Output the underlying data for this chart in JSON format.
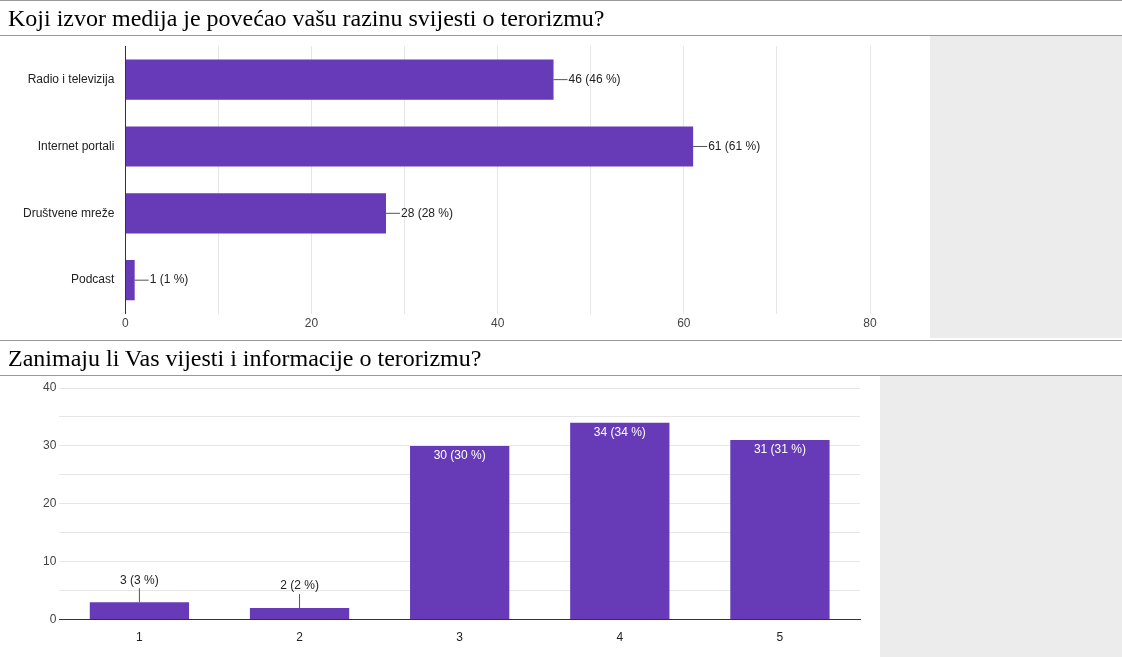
{
  "chart_data": [
    {
      "type": "bar",
      "title": "Koji izvor medija je povećao vašu razinu svijesti o terorizmu?",
      "orientation": "horizontal",
      "categories": [
        "Radio i televizija",
        "Internet portali",
        "Društvene mreže",
        "Podcast"
      ],
      "values": [
        46,
        61,
        28,
        1
      ],
      "color": "#673ab7",
      "value_labels": [
        "46 (46 %)",
        "61 (61 %)",
        "28 (28 %)",
        "1 (1 %)"
      ],
      "xlim": [
        0,
        80
      ],
      "xticks": [
        0,
        {
          "value": 10,
          "label": null
        },
        20,
        {
          "value": 30,
          "label": null
        },
        40,
        {
          "value": 50,
          "label": null
        },
        60,
        {
          "value": 70,
          "label": null
        },
        80
      ],
      "grid": "x",
      "legend": false
    },
    {
      "type": "bar",
      "title": "Zanimaju li Vas vijesti i informacije o terorizmu?",
      "categories": [
        "1",
        "2",
        "3",
        "4",
        "5"
      ],
      "values": [
        3,
        2,
        30,
        34,
        31
      ],
      "color": "#673ab7",
      "value_labels": [
        "3 (3 %)",
        "2 (2 %)",
        "30 (30 %)",
        "34 (34 %)",
        "31 (31 %)"
      ],
      "ylim": [
        0,
        40
      ],
      "yticks": [
        0,
        {
          "value": 5,
          "label": null
        },
        10,
        {
          "value": 15,
          "label": null
        },
        20,
        {
          "value": 25,
          "label": null
        },
        30,
        {
          "value": 35,
          "label": null
        },
        40
      ],
      "grid": "y",
      "legend": false
    }
  ]
}
